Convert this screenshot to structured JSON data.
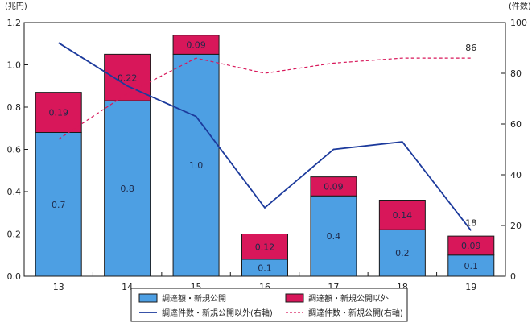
{
  "chart_data": {
    "type": "bar",
    "stacked": true,
    "categories": [
      "13",
      "14",
      "15",
      "16",
      "17",
      "18",
      "19"
    ],
    "y_left": {
      "unit": "(兆円)",
      "ylim": [
        0,
        1.2
      ],
      "ticks": [
        "0.0",
        "0.2",
        "0.4",
        "0.6",
        "0.8",
        "1.0",
        "1.2"
      ]
    },
    "y_right": {
      "unit": "(件数)",
      "ylim": [
        0,
        100
      ],
      "ticks": [
        "0",
        "20",
        "40",
        "60",
        "80",
        "100"
      ]
    },
    "series": [
      {
        "name": "調達額・新規公開",
        "kind": "bar",
        "color": "#4d9fe3",
        "values": [
          0.68,
          0.83,
          1.05,
          0.08,
          0.38,
          0.22,
          0.1
        ],
        "labels": [
          "0.7",
          "0.8",
          "1.0",
          "0.1",
          "0.4",
          "0.2",
          "0.1"
        ]
      },
      {
        "name": "調達額・新規公開以外",
        "kind": "bar",
        "color": "#d8175a",
        "values": [
          0.19,
          0.22,
          0.09,
          0.12,
          0.09,
          0.14,
          0.09
        ],
        "labels": [
          "0.19",
          "0.22",
          "0.09",
          "0.12",
          "0.09",
          "0.14",
          "0.09"
        ]
      },
      {
        "name": "調達件数・新規公開以外(右軸)",
        "kind": "line",
        "axis": "right",
        "color": "#1c3a9c",
        "style": "solid",
        "values": [
          92,
          75,
          63,
          27,
          50,
          53,
          18
        ],
        "end_label": "18"
      },
      {
        "name": "調達件数・新規公開(右軸)",
        "kind": "line",
        "axis": "right",
        "color": "#d8175a",
        "style": "dashed",
        "values": [
          54,
          72,
          86,
          80,
          84,
          86,
          86
        ],
        "end_label": "86"
      }
    ],
    "legend": {
      "placement": "bottom",
      "items": [
        "調達額・新規公開",
        "調達額・新規公開以外",
        "調達件数・新規公開以外(右軸)",
        "調達件数・新規公開(右軸)"
      ]
    },
    "grid": false
  }
}
